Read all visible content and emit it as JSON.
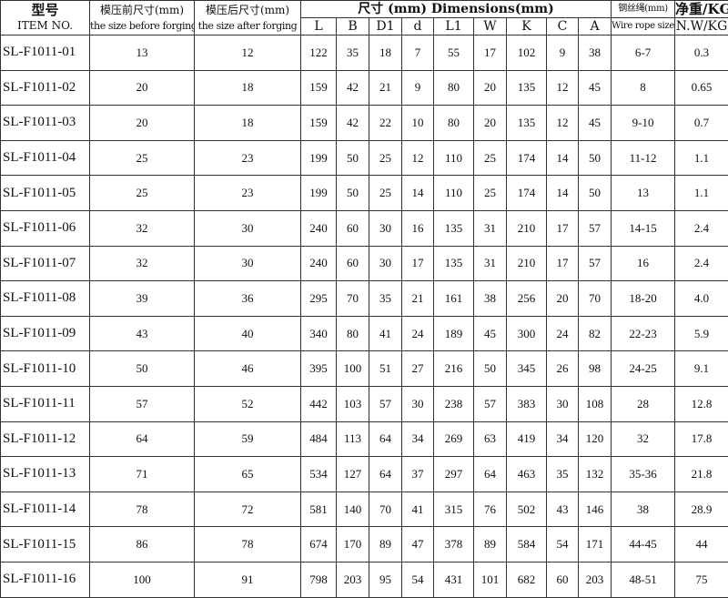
{
  "header": {
    "item_cn": "型号",
    "item_en": "ITEM NO.",
    "before_cn": "模压前尺寸(mm)",
    "before_en": "the size before forging",
    "after_cn": "模压后尺寸(mm)",
    "after_en": "the size after forging",
    "dimensions": "尺寸 (mm)  Dimensions(mm)",
    "dim_cols": [
      "L",
      "B",
      "D1",
      "d",
      "L1",
      "W",
      "K",
      "C",
      "A"
    ],
    "rope_cn": "钢丝绳(mm)",
    "rope_en": "Wire rope size",
    "weight_cn": "净重/KG",
    "weight_en": "N.W/KG"
  },
  "rows": [
    [
      "SL-F1011-01",
      "13",
      "12",
      "122",
      "35",
      "18",
      "7",
      "55",
      "17",
      "102",
      "9",
      "38",
      "6-7",
      "0.3"
    ],
    [
      "SL-F1011-02",
      "20",
      "18",
      "159",
      "42",
      "21",
      "9",
      "80",
      "20",
      "135",
      "12",
      "45",
      "8",
      "0.65"
    ],
    [
      "SL-F1011-03",
      "20",
      "18",
      "159",
      "42",
      "22",
      "10",
      "80",
      "20",
      "135",
      "12",
      "45",
      "9-10",
      "0.7"
    ],
    [
      "SL-F1011-04",
      "25",
      "23",
      "199",
      "50",
      "25",
      "12",
      "110",
      "25",
      "174",
      "14",
      "50",
      "11-12",
      "1.1"
    ],
    [
      "SL-F1011-05",
      "25",
      "23",
      "199",
      "50",
      "25",
      "14",
      "110",
      "25",
      "174",
      "14",
      "50",
      "13",
      "1.1"
    ],
    [
      "SL-F1011-06",
      "32",
      "30",
      "240",
      "60",
      "30",
      "16",
      "135",
      "31",
      "210",
      "17",
      "57",
      "14-15",
      "2.4"
    ],
    [
      "SL-F1011-07",
      "32",
      "30",
      "240",
      "60",
      "30",
      "17",
      "135",
      "31",
      "210",
      "17",
      "57",
      "16",
      "2.4"
    ],
    [
      "SL-F1011-08",
      "39",
      "36",
      "295",
      "70",
      "35",
      "21",
      "161",
      "38",
      "256",
      "20",
      "70",
      "18-20",
      "4.0"
    ],
    [
      "SL-F1011-09",
      "43",
      "40",
      "340",
      "80",
      "41",
      "24",
      "189",
      "45",
      "300",
      "24",
      "82",
      "22-23",
      "5.9"
    ],
    [
      "SL-F1011-10",
      "50",
      "46",
      "395",
      "100",
      "51",
      "27",
      "216",
      "50",
      "345",
      "26",
      "98",
      "24-25",
      "9.1"
    ],
    [
      "SL-F1011-11",
      "57",
      "52",
      "442",
      "103",
      "57",
      "30",
      "238",
      "57",
      "383",
      "30",
      "108",
      "28",
      "12.8"
    ],
    [
      "SL-F1011-12",
      "64",
      "59",
      "484",
      "113",
      "64",
      "34",
      "269",
      "63",
      "419",
      "34",
      "120",
      "32",
      "17.8"
    ],
    [
      "SL-F1011-13",
      "71",
      "65",
      "534",
      "127",
      "64",
      "37",
      "297",
      "64",
      "463",
      "35",
      "132",
      "35-36",
      "21.8"
    ],
    [
      "SL-F1011-14",
      "78",
      "72",
      "581",
      "140",
      "70",
      "41",
      "315",
      "76",
      "502",
      "43",
      "146",
      "38",
      "28.9"
    ],
    [
      "SL-F1011-15",
      "86",
      "78",
      "674",
      "170",
      "89",
      "47",
      "378",
      "89",
      "584",
      "54",
      "171",
      "44-45",
      "44"
    ],
    [
      "SL-F1011-16",
      "100",
      "91",
      "798",
      "203",
      "95",
      "54",
      "431",
      "101",
      "682",
      "60",
      "203",
      "48-51",
      "75"
    ]
  ]
}
